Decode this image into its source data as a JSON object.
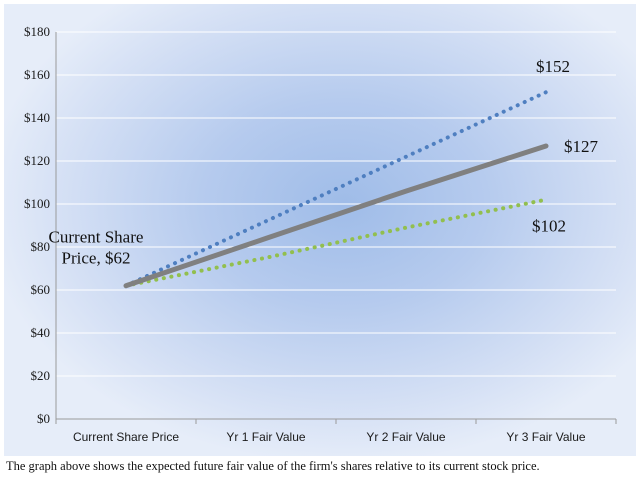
{
  "chart_data": {
    "type": "line",
    "title": "",
    "xlabel": "",
    "ylabel": "",
    "categories": [
      "Current Share Price",
      "Yr 1 Fair Value",
      "Yr 2 Fair Value",
      "Yr 3 Fair Value"
    ],
    "ylim": [
      0,
      180
    ],
    "yticks": [
      0,
      20,
      40,
      60,
      80,
      100,
      120,
      140,
      160,
      180
    ],
    "ytick_labels": [
      "$0",
      "$20",
      "$40",
      "$60",
      "$80",
      "$100",
      "$120",
      "$140",
      "$160",
      "$180"
    ],
    "grid": true,
    "legend": "none",
    "series": [
      {
        "values": [
          62,
          92,
          122,
          152
        ],
        "color": "#4f7fc0",
        "style": "dotted"
      },
      {
        "values": [
          62,
          84,
          106,
          127
        ],
        "color": "#808080",
        "style": "solid"
      },
      {
        "values": [
          62,
          75,
          89,
          102
        ],
        "color": "#92bf4e",
        "style": "dotted"
      }
    ],
    "annotations": [
      {
        "text": "$152"
      },
      {
        "text": "$127"
      },
      {
        "text": "$102"
      },
      {
        "lines": [
          "Current Share",
          "Price, $62"
        ]
      }
    ]
  },
  "caption": "The graph above shows the expected future fair value of the firm's shares relative to its current stock price."
}
